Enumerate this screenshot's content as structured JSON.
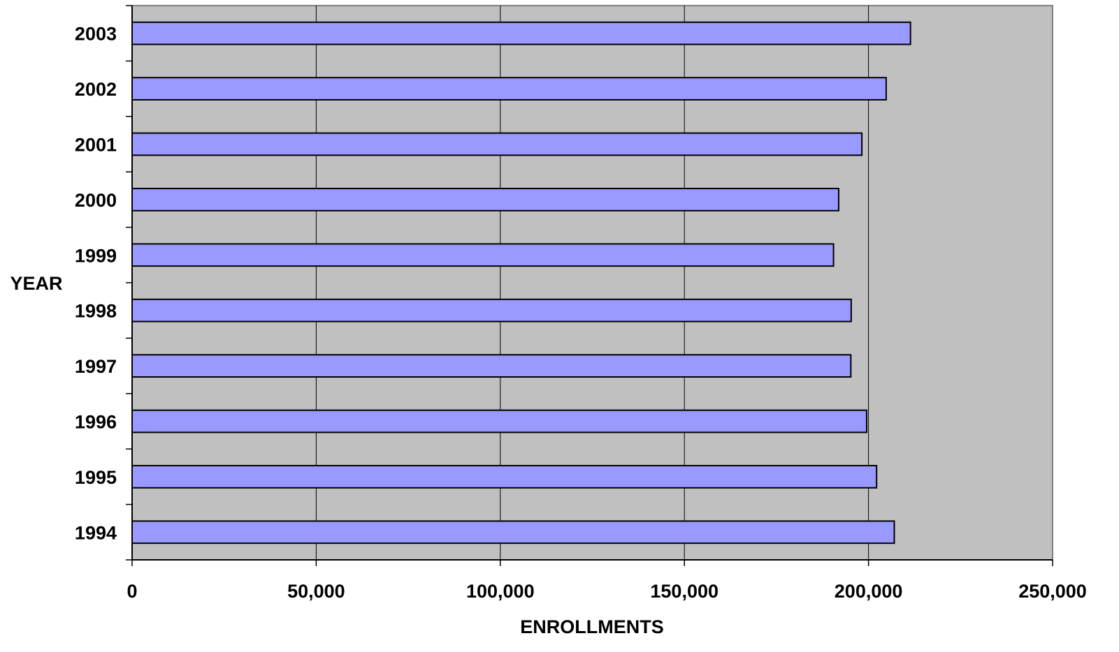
{
  "chart_data": {
    "type": "bar",
    "orientation": "horizontal",
    "categories": [
      "1994",
      "1995",
      "1996",
      "1997",
      "1998",
      "1999",
      "2000",
      "2001",
      "2002",
      "2003"
    ],
    "values": [
      207000,
      202200,
      199500,
      195200,
      195300,
      190500,
      191900,
      198200,
      204800,
      211400
    ],
    "xlabel": "ENROLLMENTS",
    "ylabel": "YEAR",
    "xlim": [
      0,
      250000
    ],
    "xticks": [
      0,
      50000,
      100000,
      150000,
      200000,
      250000
    ],
    "xtick_labels": [
      "0",
      "50,000",
      "100,000",
      "150,000",
      "200,000",
      "250,000"
    ],
    "grid": "vertical",
    "legend": "none",
    "colors": {
      "bar_fill": "#9999ff",
      "bar_stroke": "#000000",
      "plot_background": "#c0c0c0",
      "gridline": "#000000"
    }
  }
}
